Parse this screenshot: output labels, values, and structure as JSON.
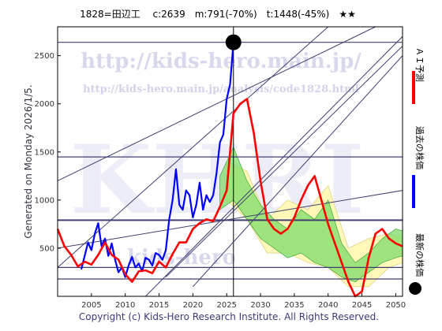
{
  "title_line": "1828=田辺工　 c:2639　m:791(-70%)　t:1448(-45%)　★★",
  "side_label": "Generated on Monday 2026/1/5.",
  "copyright": "Copyright (c) Kids-Hero Research Institute. All Rights Reserved.",
  "watermark": {
    "url1": "http://kids-hero.main.jp/",
    "url2": "http://kids-hero.main.jp/analysis/code1828.html",
    "big": "KHRI",
    "small": "kids-hero"
  },
  "legend": [
    {
      "label": "ＡＩ予測",
      "color": "#ff0000"
    },
    {
      "label": "過去の株価",
      "color": "#0000ff"
    },
    {
      "label": "最新の株価",
      "color": "#000000"
    }
  ],
  "colors": {
    "prediction": "#ff0000",
    "past": "#0000ff",
    "latest": "#000000",
    "band_yellow": "#fff7b0",
    "band_green": "#7fdc6a",
    "trend": "#404070"
  },
  "chart_data": {
    "type": "line",
    "xlim": [
      2000,
      2051
    ],
    "ylim": [
      0,
      2800
    ],
    "x_ticks": [
      2005,
      2010,
      2015,
      2020,
      2025,
      2030,
      2035,
      2040,
      2045,
      2050
    ],
    "y_ticks": [
      500,
      1000,
      1500,
      2000,
      2500
    ],
    "grid": false,
    "legend_position": "right",
    "latest_point": {
      "x": 2026.0,
      "y": 2639
    },
    "horizontal_levels": [
      2639,
      1448,
      791,
      300,
      180
    ],
    "series": [
      {
        "name": "過去の株価",
        "x": [
          2003.5,
          2004.0,
          2004.5,
          2005.0,
          2005.5,
          2006.0,
          2006.5,
          2007.0,
          2007.5,
          2008.0,
          2008.5,
          2009.0,
          2009.5,
          2010.0,
          2010.5,
          2011.0,
          2011.5,
          2012.0,
          2012.5,
          2013.0,
          2013.5,
          2014.0,
          2014.5,
          2015.0,
          2015.5,
          2016.0,
          2016.5,
          2017.0,
          2017.5,
          2018.0,
          2018.5,
          2019.0,
          2019.5,
          2020.0,
          2020.5,
          2021.0,
          2021.5,
          2022.0,
          2022.5,
          2023.0,
          2023.5,
          2024.0,
          2024.5,
          2025.0,
          2025.5,
          2026.0
        ],
        "y": [
          280,
          420,
          560,
          480,
          650,
          760,
          520,
          600,
          420,
          550,
          380,
          250,
          300,
          200,
          320,
          410,
          300,
          340,
          260,
          400,
          380,
          320,
          450,
          430,
          380,
          480,
          800,
          1000,
          1320,
          950,
          900,
          1100,
          1050,
          820,
          950,
          1180,
          900,
          1050,
          980,
          1050,
          1280,
          1600,
          1680,
          2050,
          2200,
          2639
        ]
      },
      {
        "name": "ＡＩ予測",
        "x": [
          2000,
          2001,
          2002,
          2003,
          2004,
          2005,
          2006,
          2007,
          2008,
          2009,
          2010,
          2011,
          2012,
          2013,
          2014,
          2015,
          2016,
          2017,
          2018,
          2019,
          2020,
          2021,
          2022,
          2023,
          2024,
          2025,
          2026,
          2027,
          2028,
          2029,
          2030,
          2031,
          2032,
          2033,
          2034,
          2035,
          2036,
          2037,
          2038,
          2039,
          2040,
          2041,
          2042,
          2043,
          2044,
          2045,
          2046,
          2047,
          2048,
          2049,
          2050,
          2051
        ],
        "y": [
          700,
          520,
          430,
          310,
          360,
          330,
          430,
          560,
          430,
          380,
          230,
          150,
          260,
          270,
          240,
          360,
          300,
          440,
          560,
          560,
          700,
          760,
          800,
          780,
          930,
          1100,
          1900,
          2000,
          2050,
          1700,
          1200,
          800,
          700,
          650,
          700,
          820,
          1000,
          1150,
          1250,
          1000,
          750,
          550,
          350,
          150,
          0,
          50,
          400,
          650,
          700,
          600,
          550,
          520
        ]
      }
    ],
    "bands": [
      {
        "name": "yellow",
        "x": [
          2025,
          2028,
          2031,
          2034,
          2037,
          2040,
          2043,
          2046,
          2049,
          2051
        ],
        "upper": [
          1400,
          1300,
          800,
          1000,
          900,
          1150,
          500,
          600,
          650,
          600
        ],
        "lower": [
          1000,
          800,
          450,
          450,
          350,
          300,
          100,
          100,
          300,
          350
        ]
      },
      {
        "name": "green",
        "x": [
          2024,
          2026,
          2028,
          2030,
          2032,
          2034,
          2036,
          2038,
          2040,
          2042,
          2044,
          2046,
          2048,
          2050,
          2051
        ],
        "upper": [
          1250,
          1550,
          1200,
          950,
          800,
          700,
          900,
          800,
          1000,
          550,
          350,
          450,
          600,
          700,
          680
        ],
        "lower": [
          900,
          1000,
          800,
          600,
          500,
          400,
          450,
          350,
          300,
          200,
          150,
          250,
          350,
          400,
          420
        ]
      }
    ],
    "trend_lines": [
      {
        "x": [
          2000,
          2040
        ],
        "y": [
          300,
          2800
        ]
      },
      {
        "x": [
          2000,
          2047
        ],
        "y": [
          1200,
          2800
        ]
      },
      {
        "x": [
          2016,
          2051
        ],
        "y": [
          200,
          2600
        ]
      },
      {
        "x": [
          2013,
          2051
        ],
        "y": [
          0,
          2700
        ]
      },
      {
        "x": [
          2020,
          2051
        ],
        "y": [
          100,
          2500
        ]
      },
      {
        "x": [
          2000,
          2051
        ],
        "y": [
          500,
          1100
        ]
      }
    ]
  }
}
